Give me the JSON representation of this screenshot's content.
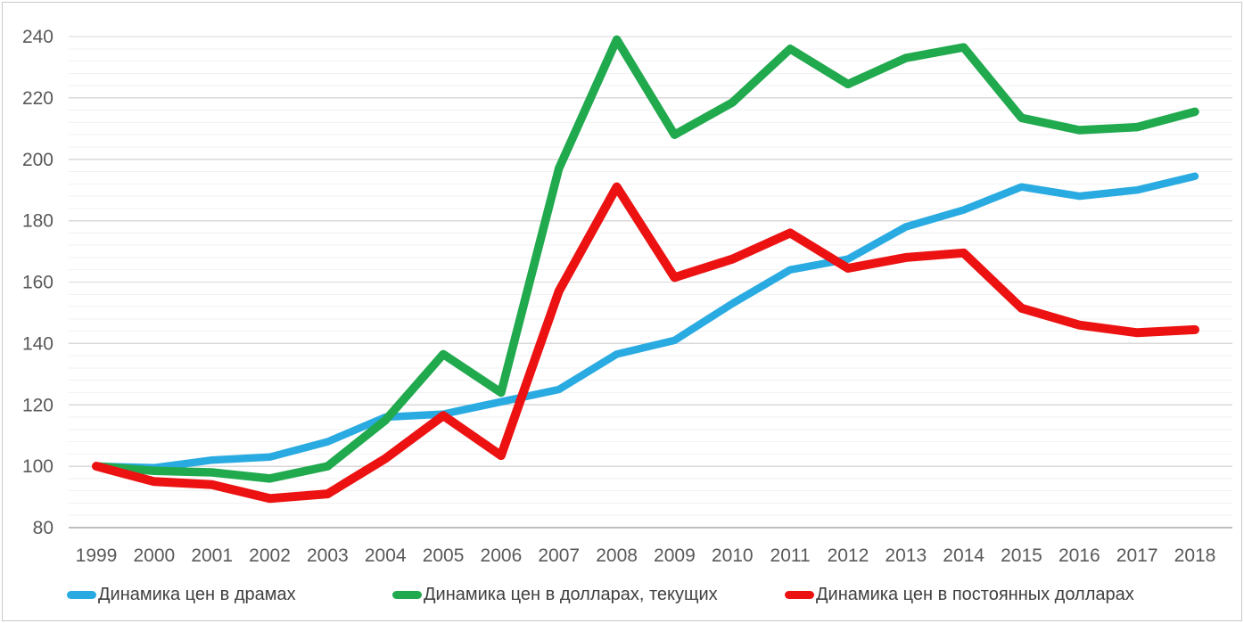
{
  "chart_data": {
    "type": "line",
    "title": "",
    "categories": [
      "1999",
      "2000",
      "2001",
      "2002",
      "2003",
      "2004",
      "2005",
      "2006",
      "2007",
      "2008",
      "2009",
      "2010",
      "2011",
      "2012",
      "2013",
      "2014",
      "2015",
      "2016",
      "2017",
      "2018"
    ],
    "series": [
      {
        "name": "Динамика цен в драмах",
        "color": "#29ABE2",
        "values": [
          100,
          99.5,
          102,
          103,
          108,
          116,
          117,
          121,
          125,
          136.5,
          141,
          153,
          164,
          167.5,
          178,
          183.5,
          191,
          188,
          190,
          194.5
        ]
      },
      {
        "name": "Динамика цен в долларах, текущих",
        "color": "#21A94E",
        "values": [
          100,
          98.5,
          98,
          96,
          100,
          115,
          136.5,
          124,
          197,
          239,
          208,
          218.5,
          236,
          224.5,
          233,
          236.5,
          213.5,
          209.5,
          210.5,
          215.5
        ]
      },
      {
        "name": "Динамика цен в постоянных долларах",
        "color": "#EC1212",
        "values": [
          100,
          95,
          94,
          89.5,
          91,
          102.5,
          116.5,
          103.5,
          157,
          191,
          161.5,
          167.5,
          176,
          164.5,
          168,
          169.5,
          151.5,
          146,
          143.5,
          144.5
        ]
      }
    ],
    "xlabel": "",
    "ylabel": "",
    "ylim": [
      80,
      240
    ],
    "y_major_step": 20,
    "y_minor_step": 4,
    "y_tick_labels": [
      "80",
      "100",
      "120",
      "140",
      "160",
      "180",
      "200",
      "220",
      "240"
    ],
    "grid": "on",
    "legend_position": "bottom",
    "colors": {
      "grid_minor": "#F2F2F2",
      "grid_major": "#D9D9D9",
      "axis_line": "#BFBFBF",
      "tick_label": "#595959",
      "legend_text": "#404040",
      "background": "#FFFFFF",
      "border": "#C9C9C9"
    }
  }
}
